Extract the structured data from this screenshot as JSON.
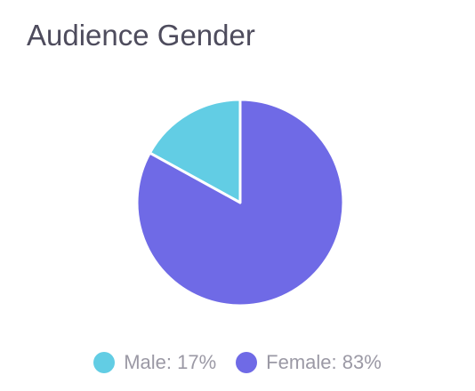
{
  "chart_data": {
    "type": "pie",
    "title": "Audience Gender",
    "categories": [
      "Male",
      "Female"
    ],
    "values": [
      17,
      83
    ],
    "colors": [
      "#62cde4",
      "#6f6ae6"
    ],
    "legend": {
      "position": "bottom",
      "entries": [
        {
          "label": "Male: 17%",
          "color": "#62cde4"
        },
        {
          "label": "Female: 83%",
          "color": "#6f6ae6"
        }
      ]
    }
  }
}
